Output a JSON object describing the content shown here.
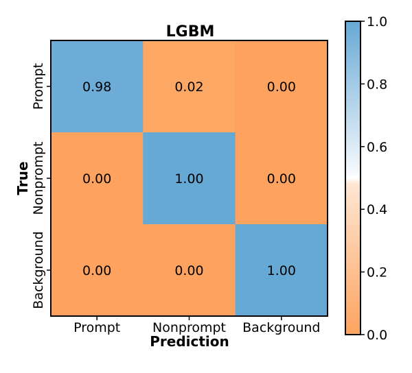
{
  "chart_data": {
    "type": "heatmap",
    "title": "LGBM",
    "xlabel": "Prediction",
    "ylabel": "True",
    "x_categories": [
      "Prompt",
      "Nonprompt",
      "Background"
    ],
    "y_categories": [
      "Prompt",
      "Nonprompt",
      "Background"
    ],
    "values": [
      [
        0.98,
        0.02,
        0.0
      ],
      [
        0.0,
        1.0,
        0.0
      ],
      [
        0.0,
        0.0,
        1.0
      ]
    ],
    "value_labels": [
      [
        "0.98",
        "0.02",
        "0.00"
      ],
      [
        "0.00",
        "1.00",
        "0.00"
      ],
      [
        "0.00",
        "0.00",
        "1.00"
      ]
    ],
    "colorbar": {
      "range": [
        0.0,
        1.0
      ],
      "ticks": [
        0.0,
        0.2,
        0.4,
        0.6,
        0.8,
        1.0
      ],
      "tick_labels": [
        "0.0",
        "0.2",
        "0.4",
        "0.6",
        "0.8",
        "1.0"
      ],
      "colors": {
        "low": "#fda35f",
        "mid": "#ffffff",
        "high": "#67a9d5"
      }
    }
  }
}
